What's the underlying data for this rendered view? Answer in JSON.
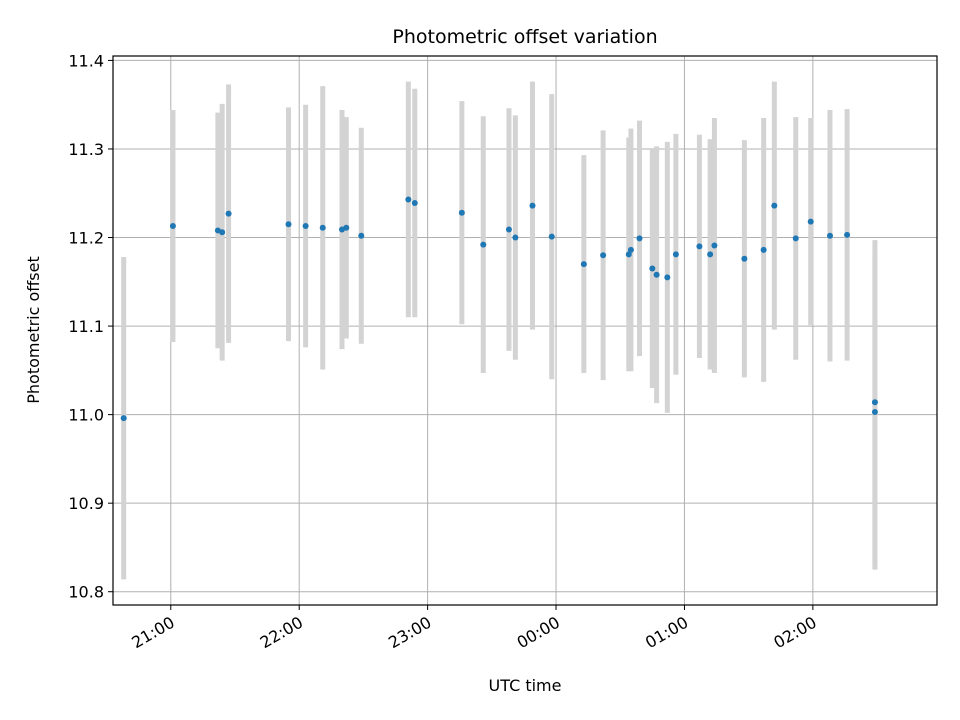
{
  "chart_data": {
    "type": "scatter",
    "title": "Photometric offset variation",
    "xlabel": "UTC time",
    "ylabel": "Photometric offset",
    "x_tick_labels": [
      "21:00",
      "22:00",
      "23:00",
      "00:00",
      "01:00",
      "02:00"
    ],
    "y_tick_labels": [
      "10.8",
      "10.9",
      "11.0",
      "11.1",
      "11.2",
      "11.3",
      "11.4"
    ],
    "x_range": [
      "20:33",
      "02:58"
    ],
    "ylim": [
      10.785,
      11.405
    ],
    "grid": true,
    "colors": {
      "point": "#1f77b4",
      "errorbar": "#d3d3d3",
      "grid": "#b0b0b0"
    },
    "points": [
      {
        "x": "20:38",
        "y": 10.996,
        "err": 0.182
      },
      {
        "x": "21:01",
        "y": 11.213,
        "err": 0.131
      },
      {
        "x": "21:22",
        "y": 11.208,
        "err": 0.133
      },
      {
        "x": "21:24",
        "y": 11.206,
        "err": 0.145
      },
      {
        "x": "21:27",
        "y": 11.227,
        "err": 0.146
      },
      {
        "x": "21:55",
        "y": 11.215,
        "err": 0.132
      },
      {
        "x": "22:03",
        "y": 11.213,
        "err": 0.137
      },
      {
        "x": "22:11",
        "y": 11.211,
        "err": 0.16
      },
      {
        "x": "22:20",
        "y": 11.209,
        "err": 0.135
      },
      {
        "x": "22:22",
        "y": 11.211,
        "err": 0.125
      },
      {
        "x": "22:29",
        "y": 11.202,
        "err": 0.122
      },
      {
        "x": "22:51",
        "y": 11.243,
        "err": 0.133
      },
      {
        "x": "22:54",
        "y": 11.239,
        "err": 0.129
      },
      {
        "x": "23:16",
        "y": 11.228,
        "err": 0.126
      },
      {
        "x": "23:26",
        "y": 11.192,
        "err": 0.145
      },
      {
        "x": "23:38",
        "y": 11.209,
        "err": 0.137
      },
      {
        "x": "23:41",
        "y": 11.2,
        "err": 0.138
      },
      {
        "x": "23:49",
        "y": 11.236,
        "err": 0.14
      },
      {
        "x": "23:58",
        "y": 11.201,
        "err": 0.161
      },
      {
        "x": "00:13",
        "y": 11.17,
        "err": 0.123
      },
      {
        "x": "00:22",
        "y": 11.18,
        "err": 0.141
      },
      {
        "x": "00:34",
        "y": 11.181,
        "err": 0.132
      },
      {
        "x": "00:35",
        "y": 11.186,
        "err": 0.137
      },
      {
        "x": "00:39",
        "y": 11.199,
        "err": 0.133
      },
      {
        "x": "00:45",
        "y": 11.165,
        "err": 0.135
      },
      {
        "x": "00:47",
        "y": 11.158,
        "err": 0.145
      },
      {
        "x": "00:52",
        "y": 11.155,
        "err": 0.153
      },
      {
        "x": "00:56",
        "y": 11.181,
        "err": 0.136
      },
      {
        "x": "01:07",
        "y": 11.19,
        "err": 0.126
      },
      {
        "x": "01:12",
        "y": 11.181,
        "err": 0.13
      },
      {
        "x": "01:14",
        "y": 11.191,
        "err": 0.144
      },
      {
        "x": "01:28",
        "y": 11.176,
        "err": 0.134
      },
      {
        "x": "01:37",
        "y": 11.186,
        "err": 0.149
      },
      {
        "x": "01:42",
        "y": 11.236,
        "err": 0.14
      },
      {
        "x": "01:52",
        "y": 11.199,
        "err": 0.137
      },
      {
        "x": "01:59",
        "y": 11.218,
        "err": 0.117
      },
      {
        "x": "02:08",
        "y": 11.202,
        "err": 0.142
      },
      {
        "x": "02:16",
        "y": 11.203,
        "err": 0.142
      },
      {
        "x": "02:29",
        "y": 11.014,
        "err": 0.183
      },
      {
        "x": "02:29",
        "y": 11.003,
        "err": 0.178
      }
    ]
  }
}
